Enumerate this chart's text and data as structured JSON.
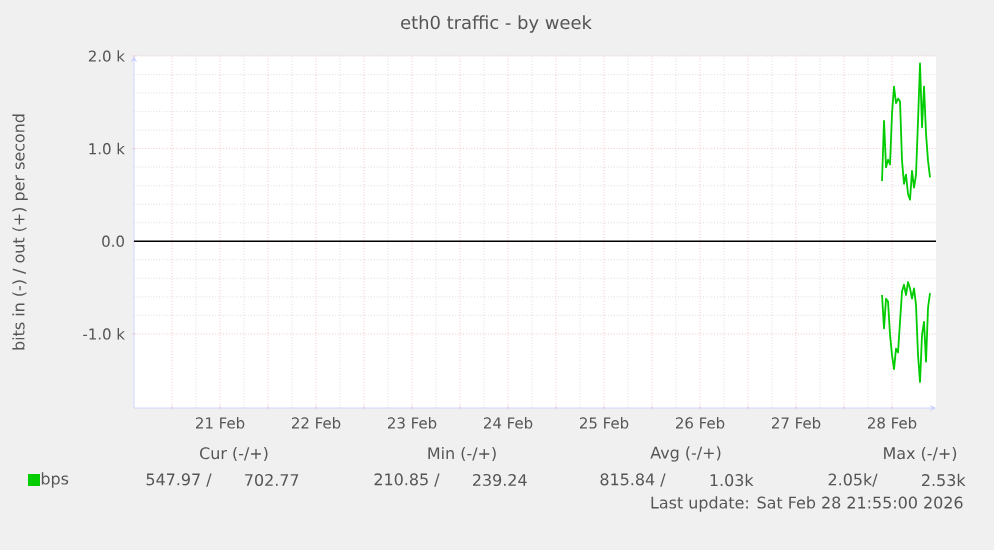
{
  "chart_data": {
    "type": "line",
    "title": "eth0 traffic - by week",
    "ylabel": "bits in (-) / out (+) per second",
    "xlim": [
      "2026-02-20T14:30",
      "2026-02-28T23:00"
    ],
    "xticks": [
      {
        "value": "2026-02-21T00:00",
        "label": null
      },
      {
        "value": "2026-02-21T12:00",
        "label": "21 Feb"
      },
      {
        "value": "2026-02-22T00:00",
        "label": null
      },
      {
        "value": "2026-02-22T12:00",
        "label": "22 Feb"
      },
      {
        "value": "2026-02-23T00:00",
        "label": null
      },
      {
        "value": "2026-02-23T12:00",
        "label": "23 Feb"
      },
      {
        "value": "2026-02-24T00:00",
        "label": null
      },
      {
        "value": "2026-02-24T12:00",
        "label": "24 Feb"
      },
      {
        "value": "2026-02-25T00:00",
        "label": null
      },
      {
        "value": "2026-02-25T12:00",
        "label": "25 Feb"
      },
      {
        "value": "2026-02-26T00:00",
        "label": null
      },
      {
        "value": "2026-02-26T12:00",
        "label": "26 Feb"
      },
      {
        "value": "2026-02-27T00:00",
        "label": null
      },
      {
        "value": "2026-02-27T12:00",
        "label": "27 Feb"
      },
      {
        "value": "2026-02-28T00:00",
        "label": null
      },
      {
        "value": "2026-02-28T12:00",
        "label": "28 Feb"
      }
    ],
    "ylim": [
      -1800,
      2000
    ],
    "yticks": [
      {
        "value": -1000,
        "label": "-1.0 k"
      },
      {
        "value": 0,
        "label": "0.0"
      },
      {
        "value": 1000,
        "label": "1.0 k"
      },
      {
        "value": 2000,
        "label": "2.0 k"
      }
    ],
    "grid": true,
    "legend": "bottom",
    "x": [
      "2026-02-28T09:30",
      "2026-02-28T10:00",
      "2026-02-28T10:30",
      "2026-02-28T11:00",
      "2026-02-28T11:30",
      "2026-02-28T12:00",
      "2026-02-28T12:30",
      "2026-02-28T13:00",
      "2026-02-28T13:30",
      "2026-02-28T14:00",
      "2026-02-28T14:30",
      "2026-02-28T15:00",
      "2026-02-28T15:30",
      "2026-02-28T16:00",
      "2026-02-28T16:30",
      "2026-02-28T17:00",
      "2026-02-28T17:30",
      "2026-02-28T18:00",
      "2026-02-28T18:30",
      "2026-02-28T19:00",
      "2026-02-28T19:30",
      "2026-02-28T20:00",
      "2026-02-28T20:30",
      "2026-02-28T21:00",
      "2026-02-28T21:30"
    ],
    "series": [
      {
        "name": "bps",
        "color": "#00cc00",
        "values": [
          650,
          1300,
          800,
          880,
          830,
          1380,
          1670,
          1490,
          1540,
          1510,
          870,
          620,
          720,
          510,
          450,
          760,
          580,
          720,
          1300,
          1920,
          1230,
          1670,
          1160,
          870,
          690
        ]
      },
      {
        "color": "#00cc00",
        "values": [
          -580,
          -940,
          -620,
          -650,
          -1010,
          -1230,
          -1380,
          -1160,
          -1200,
          -870,
          -540,
          -470,
          -580,
          -440,
          -510,
          -620,
          -510,
          -690,
          -1230,
          -1520,
          -1010,
          -870,
          -1300,
          -720,
          -560
        ]
      }
    ],
    "ref_lines": [
      {
        "axis": "y",
        "value": 0,
        "color": "#000000"
      }
    ],
    "annotations": [
      "Cur (-/+)",
      "Min (-/+)",
      "Avg (-/+)",
      "Max (-/+)",
      "547.97 /",
      "702.77",
      "210.85 /",
      "239.24",
      "815.84 /",
      "1.03k",
      "2.05k/",
      "2.53k",
      "Last update: Sat Feb 28 21:55:00 2026"
    ]
  }
}
